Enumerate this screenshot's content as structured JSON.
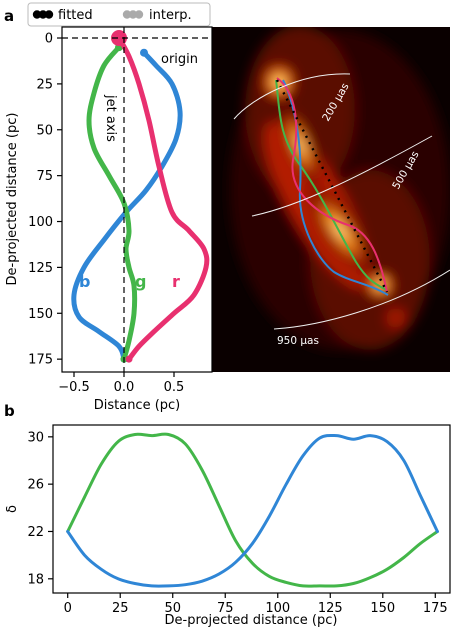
{
  "legend": {
    "fitted": "fitted",
    "interp": "interp."
  },
  "colors": {
    "blue": "#2f86d6",
    "green": "#43b649",
    "red": "#e8306f",
    "axis": "#000000"
  },
  "panel_a": {
    "label": "a",
    "ylabel": "De-projected distance (pc)",
    "xlabel": "Distance (pc)",
    "annot_origin": "origin",
    "annot_jet_axis": "jet axis",
    "annot_b": "b",
    "annot_g": "g",
    "annot_r": "r",
    "arc_labels": [
      "200 μas",
      "500 μas",
      "950 μas"
    ]
  },
  "panel_b": {
    "label": "b"
  },
  "chart_data": [
    {
      "type": "line",
      "xlabel": "Distance (pc)",
      "ylabel": "De-projected distance (pc)",
      "xlim": [
        -0.62,
        0.88
      ],
      "ylim": [
        182,
        -6
      ],
      "xticks": [
        -0.5,
        0.0,
        0.5
      ],
      "xtick_labels": [
        "−0.5",
        "0.0",
        "0.5"
      ],
      "yticks": [
        0,
        25,
        50,
        75,
        100,
        125,
        150,
        175
      ],
      "ytick_labels": [
        "0",
        "25",
        "50",
        "75",
        "100",
        "125",
        "150",
        "175"
      ],
      "legend": [
        "fitted",
        "interp."
      ],
      "series": [
        {
          "name": "b",
          "x": [
            0.2,
            0.32,
            0.48,
            0.56,
            0.52,
            0.38,
            0.22,
            0.02,
            -0.2,
            -0.4,
            -0.5,
            -0.45,
            -0.25,
            -0.05,
            0.0
          ],
          "y": [
            8,
            15,
            25,
            40,
            55,
            70,
            83,
            95,
            110,
            125,
            140,
            152,
            160,
            168,
            175
          ]
        },
        {
          "name": "g",
          "x": [
            -0.05,
            -0.2,
            -0.3,
            -0.35,
            -0.3,
            -0.15,
            0.0,
            0.05,
            0.02,
            0.05,
            0.1,
            0.1,
            0.05,
            0.0
          ],
          "y": [
            5,
            15,
            30,
            45,
            60,
            75,
            90,
            105,
            115,
            125,
            135,
            150,
            165,
            175
          ]
        },
        {
          "name": "r",
          "x": [
            -0.05,
            0.05,
            0.15,
            0.25,
            0.35,
            0.48,
            0.65,
            0.8,
            0.82,
            0.7,
            0.5,
            0.3,
            0.15,
            0.05
          ],
          "y": [
            0,
            10,
            25,
            45,
            70,
            95,
            105,
            115,
            125,
            140,
            150,
            160,
            168,
            175
          ]
        }
      ]
    },
    {
      "type": "line",
      "xlabel": "De-projected distance (pc)",
      "ylabel": "δ",
      "xlim": [
        -7,
        182
      ],
      "ylim": [
        16.8,
        31.0
      ],
      "xticks": [
        0,
        25,
        50,
        75,
        100,
        125,
        150,
        175
      ],
      "xtick_labels": [
        "0",
        "25",
        "50",
        "75",
        "100",
        "125",
        "150",
        "175"
      ],
      "yticks": [
        18,
        22,
        26,
        30
      ],
      "ytick_labels": [
        "18",
        "22",
        "26",
        "30"
      ],
      "series": [
        {
          "color": "green",
          "x": [
            0,
            8,
            16,
            24,
            32,
            40,
            48,
            56,
            64,
            72,
            80,
            88,
            96,
            104,
            112,
            120,
            128,
            136,
            144,
            152,
            160,
            168,
            176
          ],
          "y": [
            22,
            24.9,
            27.7,
            29.6,
            30.2,
            30.1,
            30.2,
            29.4,
            27.2,
            24.2,
            21.2,
            19.3,
            18.2,
            17.7,
            17.4,
            17.4,
            17.4,
            17.6,
            18.1,
            18.8,
            19.8,
            21.0,
            22.0
          ]
        },
        {
          "color": "blue",
          "x": [
            0,
            8,
            16,
            24,
            32,
            40,
            48,
            56,
            64,
            72,
            80,
            88,
            96,
            104,
            112,
            120,
            128,
            136,
            144,
            152,
            160,
            168,
            176
          ],
          "y": [
            22,
            20.0,
            18.8,
            18.0,
            17.6,
            17.4,
            17.4,
            17.5,
            17.8,
            18.4,
            19.4,
            21.0,
            23.3,
            26.0,
            28.4,
            29.9,
            30.1,
            29.8,
            30.1,
            29.6,
            28.0,
            25.0,
            22.0
          ]
        }
      ]
    }
  ]
}
